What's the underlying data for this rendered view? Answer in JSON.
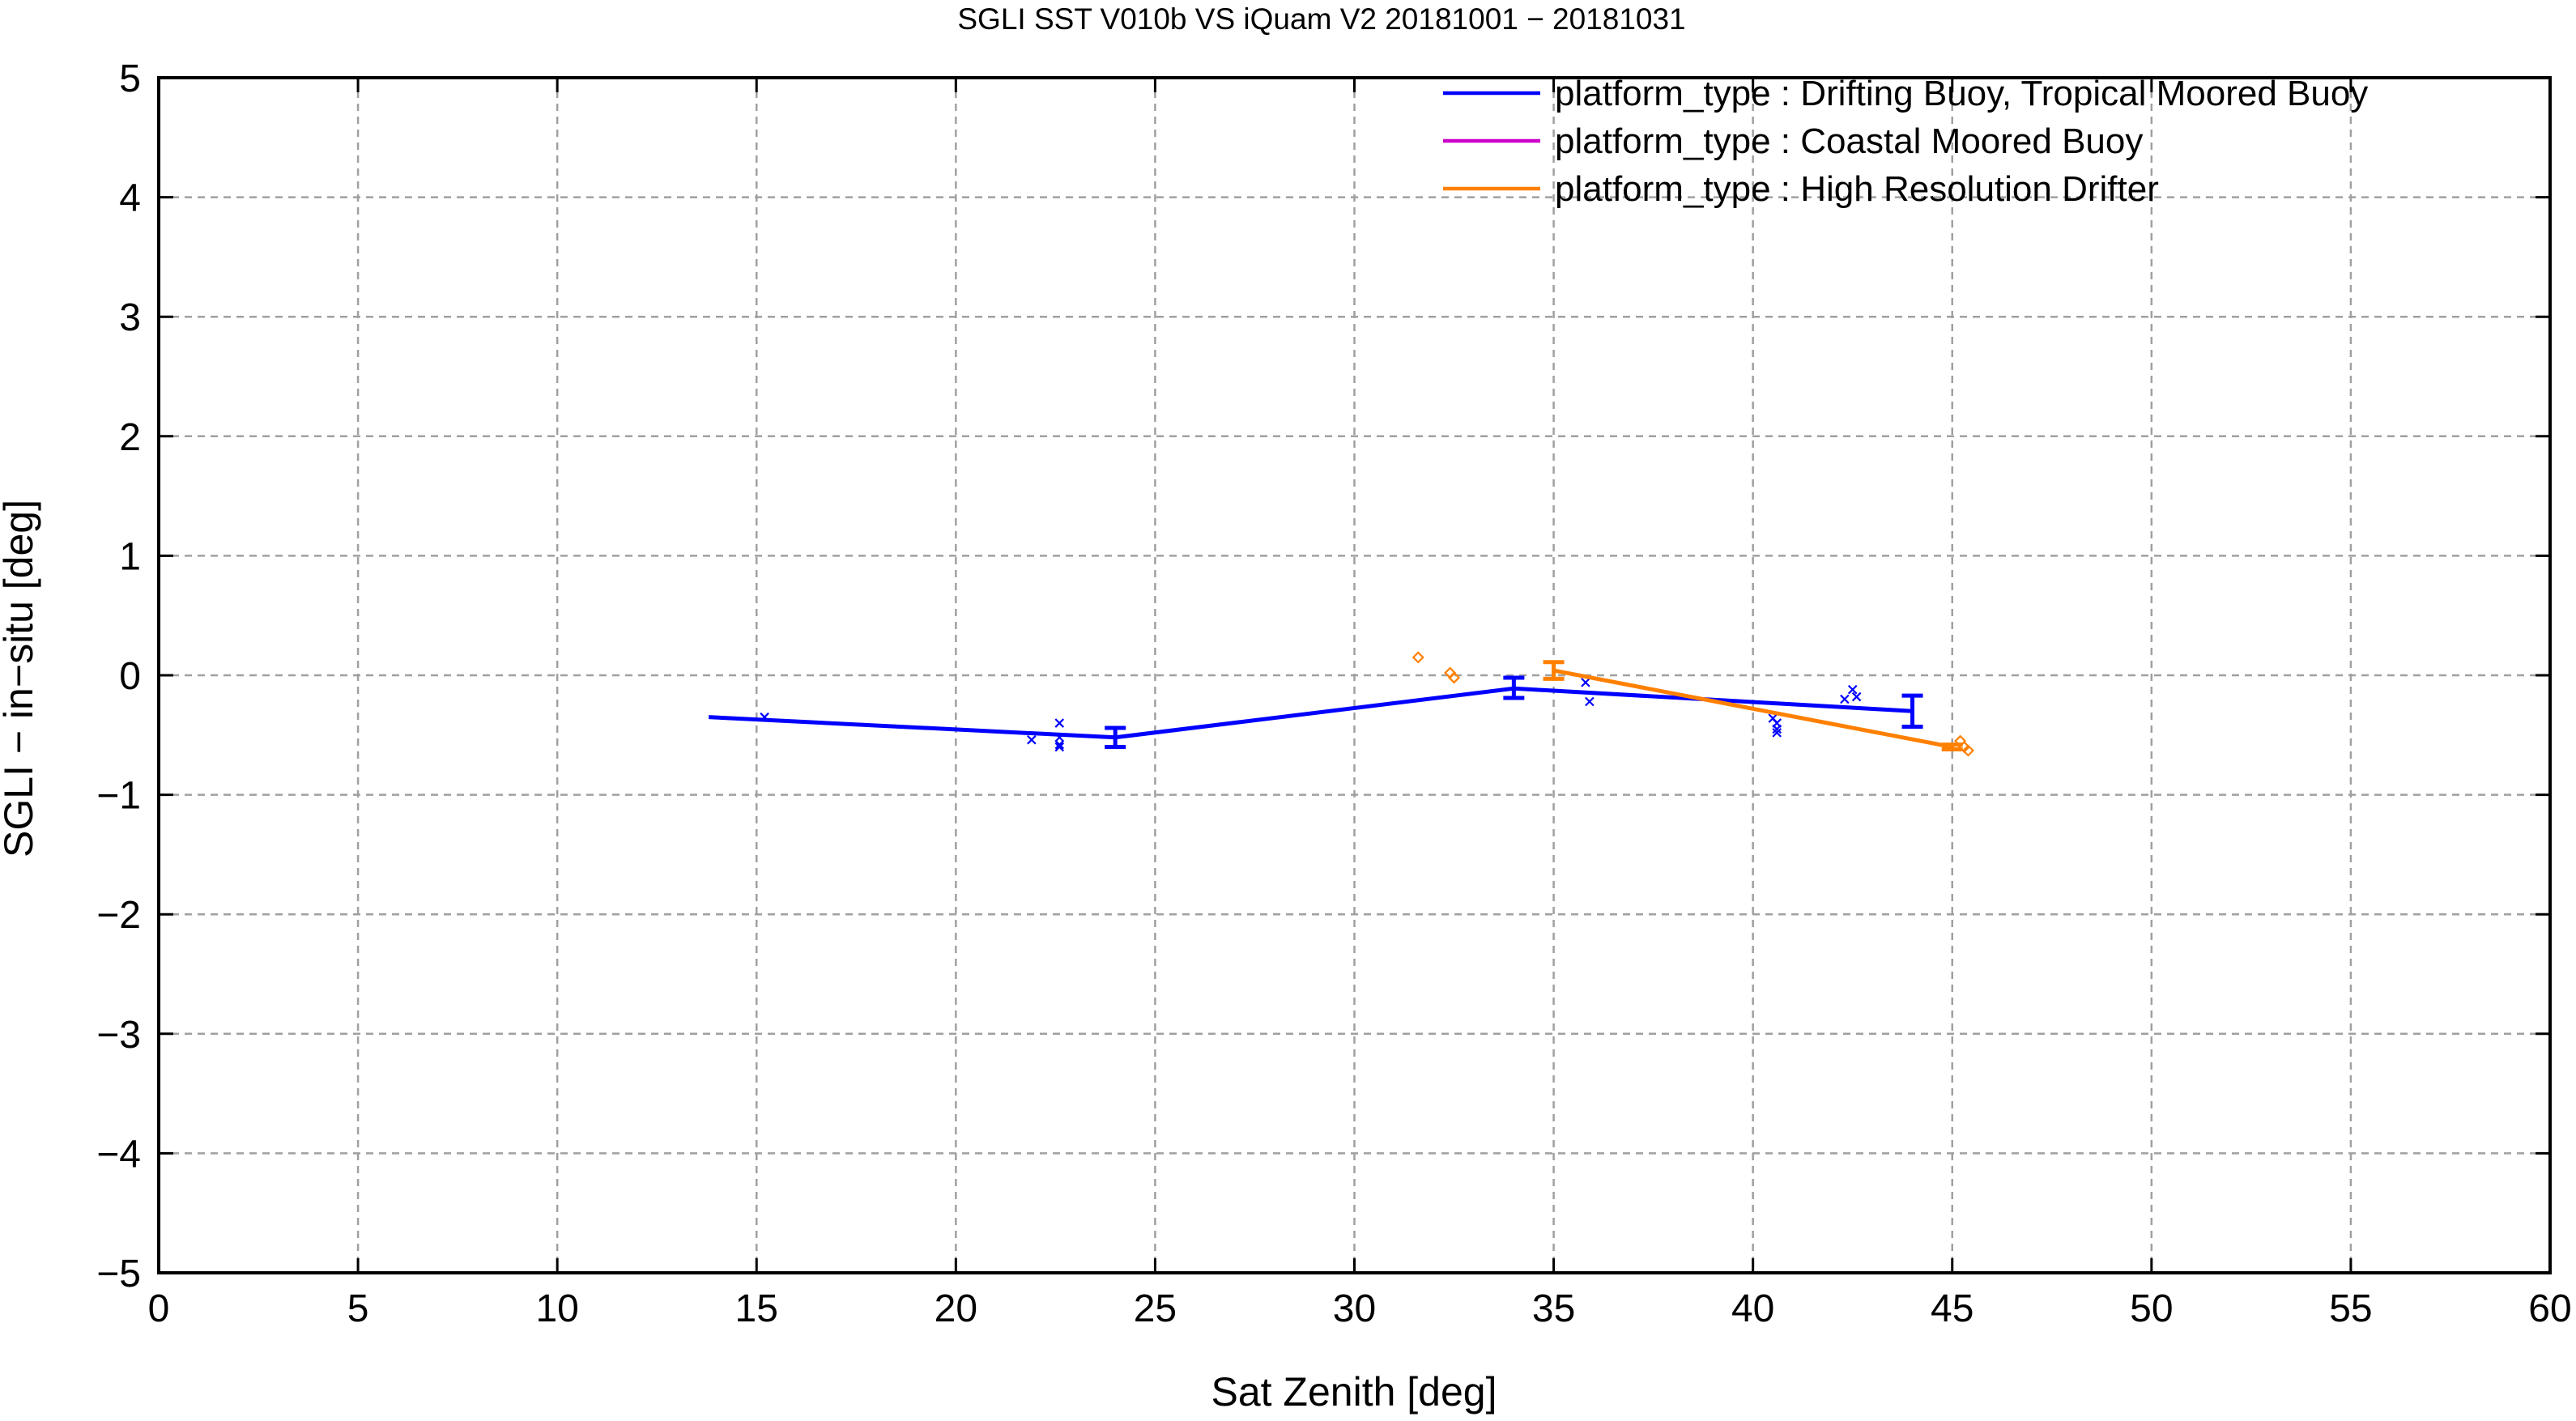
{
  "chart_data": {
    "type": "line",
    "title": "SGLI SST V010b VS iQuam V2 20181001 − 20181031",
    "xlabel": "Sat Zenith [deg]",
    "ylabel": "SGLI − in−situ [deg]",
    "xlim": [
      0,
      60
    ],
    "ylim": [
      -5,
      5
    ],
    "xticks": [
      0,
      5,
      10,
      15,
      20,
      25,
      30,
      35,
      40,
      45,
      50,
      55,
      60
    ],
    "yticks": [
      -5,
      -4,
      -3,
      -2,
      -1,
      0,
      1,
      2,
      3,
      4,
      5
    ],
    "xtick_labels": [
      "0",
      "5",
      "10",
      "15",
      "20",
      "25",
      "30",
      "35",
      "40",
      "45",
      "50",
      "55",
      "60"
    ],
    "ytick_labels": [
      "−5",
      "−4",
      "−3",
      "−2",
      "−1",
      "0",
      "1",
      "2",
      "3",
      "4",
      "5"
    ],
    "grid": true,
    "legend_position": "top-right",
    "series": [
      {
        "name": "platform_type : Drifting Buoy, Tropical Moored Buoy",
        "color": "#0000ff",
        "marker": "x",
        "line_x": [
          13.8,
          24,
          34,
          44
        ],
        "line_y": [
          -0.35,
          -0.52,
          -0.11,
          -0.3
        ],
        "errorbars": [
          {
            "x": 24,
            "low": -0.6,
            "high": -0.44
          },
          {
            "x": 34,
            "low": -0.19,
            "high": -0.02
          },
          {
            "x": 44,
            "low": -0.43,
            "high": -0.17
          }
        ],
        "points": [
          {
            "x": 15.2,
            "y": -0.35
          },
          {
            "x": 21.9,
            "y": -0.54
          },
          {
            "x": 22.6,
            "y": -0.4
          },
          {
            "x": 22.6,
            "y": -0.52
          },
          {
            "x": 22.6,
            "y": -0.58
          },
          {
            "x": 22.6,
            "y": -0.6
          },
          {
            "x": 35.8,
            "y": -0.06
          },
          {
            "x": 35.9,
            "y": -0.22
          },
          {
            "x": 40.5,
            "y": -0.36
          },
          {
            "x": 40.6,
            "y": -0.4
          },
          {
            "x": 40.6,
            "y": -0.45
          },
          {
            "x": 40.6,
            "y": -0.48
          },
          {
            "x": 42.3,
            "y": -0.2
          },
          {
            "x": 42.5,
            "y": -0.12
          },
          {
            "x": 42.6,
            "y": -0.18
          }
        ]
      },
      {
        "name": "platform_type : Coastal Moored Buoy",
        "color": "#cc00cc",
        "marker": "x",
        "line_x": [],
        "line_y": [],
        "errorbars": [],
        "points": []
      },
      {
        "name": "platform_type : High Resolution Drifter",
        "color": "#ff8000",
        "marker": "diamond",
        "line_x": [
          35,
          45
        ],
        "line_y": [
          0.04,
          -0.6
        ],
        "errorbars": [
          {
            "x": 35,
            "low": -0.03,
            "high": 0.11
          },
          {
            "x": 45,
            "low": -0.62,
            "high": -0.58
          }
        ],
        "points": [
          {
            "x": 31.6,
            "y": 0.15
          },
          {
            "x": 32.4,
            "y": 0.02
          },
          {
            "x": 32.5,
            "y": -0.02
          },
          {
            "x": 45.2,
            "y": -0.55
          },
          {
            "x": 45.3,
            "y": -0.6
          },
          {
            "x": 45.4,
            "y": -0.63
          }
        ]
      }
    ]
  }
}
